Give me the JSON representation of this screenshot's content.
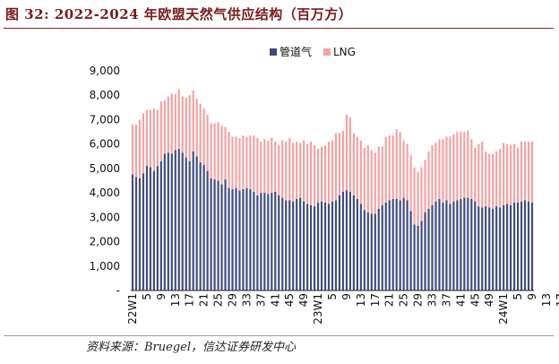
{
  "figure": {
    "title": "图  32:  2022-2024 年欧盟天然气供应结构（百万方）",
    "source": "资料来源：Bruegel，信达证券研发中心"
  },
  "colors": {
    "pipeline": "#3f4d7d",
    "lng": "#f4a3a3",
    "title": "#7a1a1a"
  },
  "chart_data": {
    "type": "bar",
    "stacked": true,
    "title": "",
    "xlabel": "",
    "ylabel": "",
    "ylim": [
      0,
      9000
    ],
    "yticks": [
      "-",
      "1,000",
      "2,000",
      "3,000",
      "4,000",
      "5,000",
      "6,000",
      "7,000",
      "8,000",
      "9,000"
    ],
    "legend_position": "top-center",
    "grid": false,
    "tick_labels": [
      "22W1",
      "5",
      "9",
      "13",
      "17",
      "21",
      "25",
      "29",
      "33",
      "37",
      "41",
      "45",
      "49",
      "23W1",
      "5",
      "9",
      "13",
      "17",
      "21",
      "25",
      "29",
      "33",
      "37",
      "41",
      "45",
      "49",
      "24W1",
      "5",
      "9",
      "13",
      "17"
    ],
    "tick_every": 4,
    "series": [
      {
        "name": "管道气",
        "values": [
          4750,
          4650,
          4600,
          4800,
          5100,
          5050,
          4900,
          5100,
          5300,
          5600,
          5650,
          5600,
          5750,
          5800,
          5650,
          5450,
          5300,
          5700,
          5500,
          5250,
          5150,
          4900,
          4600,
          4550,
          4500,
          4350,
          4550,
          4200,
          4150,
          4200,
          4100,
          4150,
          4200,
          4150,
          4050,
          3900,
          4000,
          4000,
          3950,
          4000,
          4050,
          3900,
          3800,
          3700,
          3700,
          3650,
          3750,
          3800,
          3650,
          3550,
          3500,
          3450,
          3600,
          3650,
          3600,
          3550,
          3650,
          3700,
          3900,
          4050,
          4100,
          4050,
          3900,
          3750,
          3550,
          3300,
          3200,
          3150,
          3150,
          3350,
          3500,
          3600,
          3700,
          3750,
          3750,
          3700,
          3800,
          3700,
          3250,
          2700,
          2650,
          2850,
          3200,
          3350,
          3500,
          3650,
          3750,
          3600,
          3700,
          3550,
          3650,
          3700,
          3750,
          3800,
          3800,
          3750,
          3650,
          3450,
          3400,
          3450,
          3400,
          3350,
          3450,
          3400,
          3500,
          3550,
          3500,
          3600,
          3600,
          3650,
          3700,
          3650,
          3600
        ]
      },
      {
        "name": "LNG",
        "values": [
          2050,
          2150,
          2400,
          2450,
          2300,
          2350,
          2550,
          2300,
          2450,
          2200,
          2300,
          2450,
          2300,
          2450,
          2300,
          2450,
          2700,
          2500,
          2350,
          2400,
          2300,
          2300,
          2250,
          2300,
          2400,
          2400,
          2150,
          2300,
          2150,
          2100,
          2150,
          2200,
          2100,
          2200,
          2300,
          2350,
          2100,
          2200,
          2200,
          2250,
          2050,
          2050,
          2350,
          2400,
          2550,
          2400,
          2350,
          2250,
          2500,
          2450,
          2600,
          2500,
          2200,
          2250,
          2350,
          2550,
          2500,
          2750,
          2550,
          2500,
          3100,
          3050,
          2550,
          2550,
          2600,
          2550,
          2750,
          2600,
          2500,
          2550,
          2400,
          2700,
          2650,
          2600,
          2850,
          2800,
          2350,
          2300,
          2300,
          2350,
          2200,
          2200,
          2150,
          2350,
          2450,
          2400,
          2450,
          2600,
          2600,
          2750,
          2750,
          2800,
          2750,
          2700,
          2750,
          2450,
          2200,
          2550,
          2700,
          2250,
          2200,
          2250,
          2250,
          2400,
          2550,
          2450,
          2450,
          2400,
          2250,
          2450,
          2400,
          2450,
          2500
        ]
      }
    ]
  }
}
